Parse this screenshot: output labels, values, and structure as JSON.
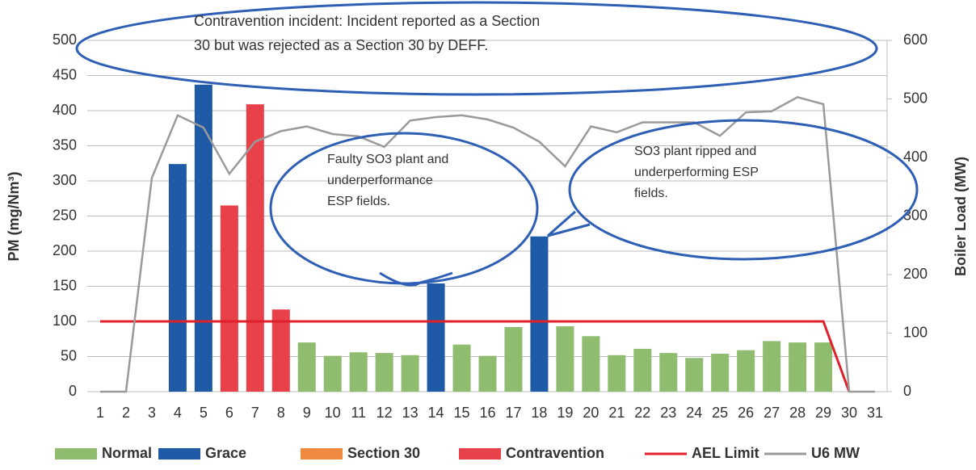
{
  "chart_data": {
    "type": "bar",
    "categories": [
      "1",
      "2",
      "3",
      "4",
      "5",
      "6",
      "7",
      "8",
      "9",
      "10",
      "11",
      "12",
      "13",
      "14",
      "15",
      "16",
      "17",
      "18",
      "19",
      "20",
      "21",
      "22",
      "23",
      "24",
      "25",
      "26",
      "27",
      "28",
      "29",
      "30",
      "31"
    ],
    "series": [
      {
        "name": "Normal",
        "color": "#8fbc6f",
        "kind": "bar",
        "values": [
          null,
          null,
          null,
          null,
          null,
          null,
          null,
          null,
          70,
          51,
          56,
          55,
          52,
          null,
          67,
          51,
          92,
          null,
          93,
          79,
          52,
          61,
          55,
          48,
          54,
          59,
          72,
          70,
          70,
          null,
          null
        ]
      },
      {
        "name": "Grace",
        "color": "#1f5aa6",
        "kind": "bar",
        "values": [
          null,
          null,
          null,
          324,
          437,
          null,
          null,
          null,
          null,
          null,
          null,
          null,
          null,
          154,
          null,
          null,
          null,
          221,
          null,
          null,
          null,
          null,
          null,
          null,
          null,
          null,
          null,
          null,
          null,
          null,
          null
        ]
      },
      {
        "name": "Section 30",
        "color": "#f08a40",
        "kind": "bar",
        "values": [
          null,
          null,
          null,
          null,
          null,
          null,
          null,
          null,
          null,
          null,
          null,
          null,
          null,
          null,
          null,
          null,
          null,
          null,
          null,
          null,
          null,
          null,
          null,
          null,
          null,
          null,
          null,
          null,
          null,
          null,
          null
        ]
      },
      {
        "name": "Contravention",
        "color": "#e8414a",
        "kind": "bar",
        "values": [
          null,
          null,
          null,
          null,
          null,
          265,
          409,
          117,
          null,
          null,
          null,
          null,
          null,
          null,
          null,
          null,
          null,
          null,
          null,
          null,
          null,
          null,
          null,
          null,
          null,
          null,
          null,
          null,
          null,
          null,
          null
        ]
      },
      {
        "name": "AEL Limit",
        "color": "#e0202a",
        "kind": "line",
        "values": [
          100,
          100,
          100,
          100,
          100,
          100,
          100,
          100,
          100,
          100,
          100,
          100,
          100,
          100,
          100,
          100,
          100,
          100,
          100,
          100,
          100,
          100,
          100,
          100,
          100,
          100,
          100,
          100,
          100,
          0,
          null
        ]
      },
      {
        "name": "U6 MW",
        "color": "#9a9a9a",
        "kind": "line",
        "axis": "y2",
        "values": [
          0,
          0,
          365,
          472,
          451,
          372,
          427,
          445,
          453,
          440,
          436,
          418,
          463,
          469,
          472,
          465,
          451,
          427,
          385,
          453,
          443,
          460,
          460,
          460,
          437,
          477,
          479,
          503,
          491,
          0,
          0
        ]
      }
    ],
    "ylabel": "PM (mg/Nm³)",
    "y2label": "Boiler Load (MW)",
    "ylim": [
      0,
      500
    ],
    "yticks": [
      0,
      50,
      100,
      150,
      200,
      250,
      300,
      350,
      400,
      450,
      500
    ],
    "y2lim": [
      0,
      600
    ],
    "y2ticks": [
      0,
      100,
      200,
      300,
      400,
      500,
      600
    ],
    "grid": true,
    "legend": "bottom",
    "annotations": [
      [
        "Contravention incident: Incident reported as a Section",
        "30 but was rejected as a Section 30 by DEFF."
      ],
      [
        "Faulty SO3 plant and",
        "underperformance",
        "ESP fields."
      ],
      [
        "SO3 plant ripped and",
        "underperforming ESP",
        "fields."
      ]
    ]
  }
}
